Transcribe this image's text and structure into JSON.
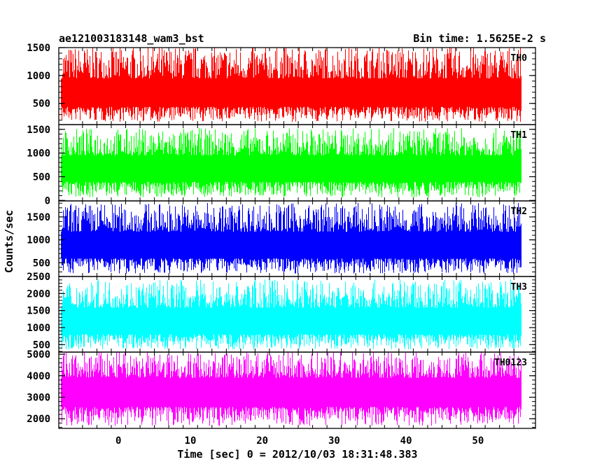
{
  "chart_data": {
    "type": "line",
    "title": "ae121003183148_wam3_bst",
    "subtitle": "Bin time: 1.5625E-2 s",
    "xlabel": "Time [sec] 0 = 2012/10/03 18:31:48.383",
    "ylabel": "Counts/sec",
    "xlim": [
      -8.3,
      58
    ],
    "x_range_data": [
      -8.0,
      56.0
    ],
    "x_ticks": [
      0,
      10,
      20,
      30,
      40,
      50
    ],
    "x_tick_labels": [
      "0",
      "10",
      "20",
      "30",
      "40",
      "50"
    ],
    "grid": false,
    "legend": "none",
    "panels": [
      {
        "label": "TH0",
        "color": "#ff0000",
        "ylim": [
          120,
          1500
        ],
        "y_ticks": [
          500,
          1000,
          1500
        ],
        "y_tick_labels": [
          "500",
          "1000",
          "1500"
        ],
        "mean": 650,
        "low": 180,
        "high": 1500
      },
      {
        "label": "TH1",
        "color": "#00ff00",
        "ylim": [
          -10,
          1600
        ],
        "y_ticks": [
          0,
          500,
          1000,
          1500
        ],
        "y_tick_labels": [
          "0",
          "500",
          "1000",
          "1500"
        ],
        "mean": 650,
        "low": 80,
        "high": 1500
      },
      {
        "label": "TH2",
        "color": "#0000ff",
        "ylim": [
          200,
          1850
        ],
        "y_ticks": [
          500,
          1000,
          1500
        ],
        "y_tick_labels": [
          "500",
          "1000",
          "1500"
        ],
        "mean": 850,
        "low": 280,
        "high": 1780
      },
      {
        "label": "TH3",
        "color": "#00ffff",
        "ylim": [
          280,
          2500
        ],
        "y_ticks": [
          500,
          1000,
          1500,
          2000,
          2500
        ],
        "y_tick_labels": [
          "500",
          "1000",
          "1500",
          "2000",
          "2500"
        ],
        "mean": 1150,
        "low": 380,
        "high": 2380
      },
      {
        "label": "TH0123",
        "color": "#ff00ff",
        "ylim": [
          1550,
          5100
        ],
        "y_ticks": [
          2000,
          3000,
          4000,
          5000
        ],
        "y_tick_labels": [
          "2000",
          "3000",
          "4000",
          "5000"
        ],
        "mean": 3250,
        "low": 1700,
        "high": 5100
      }
    ]
  }
}
